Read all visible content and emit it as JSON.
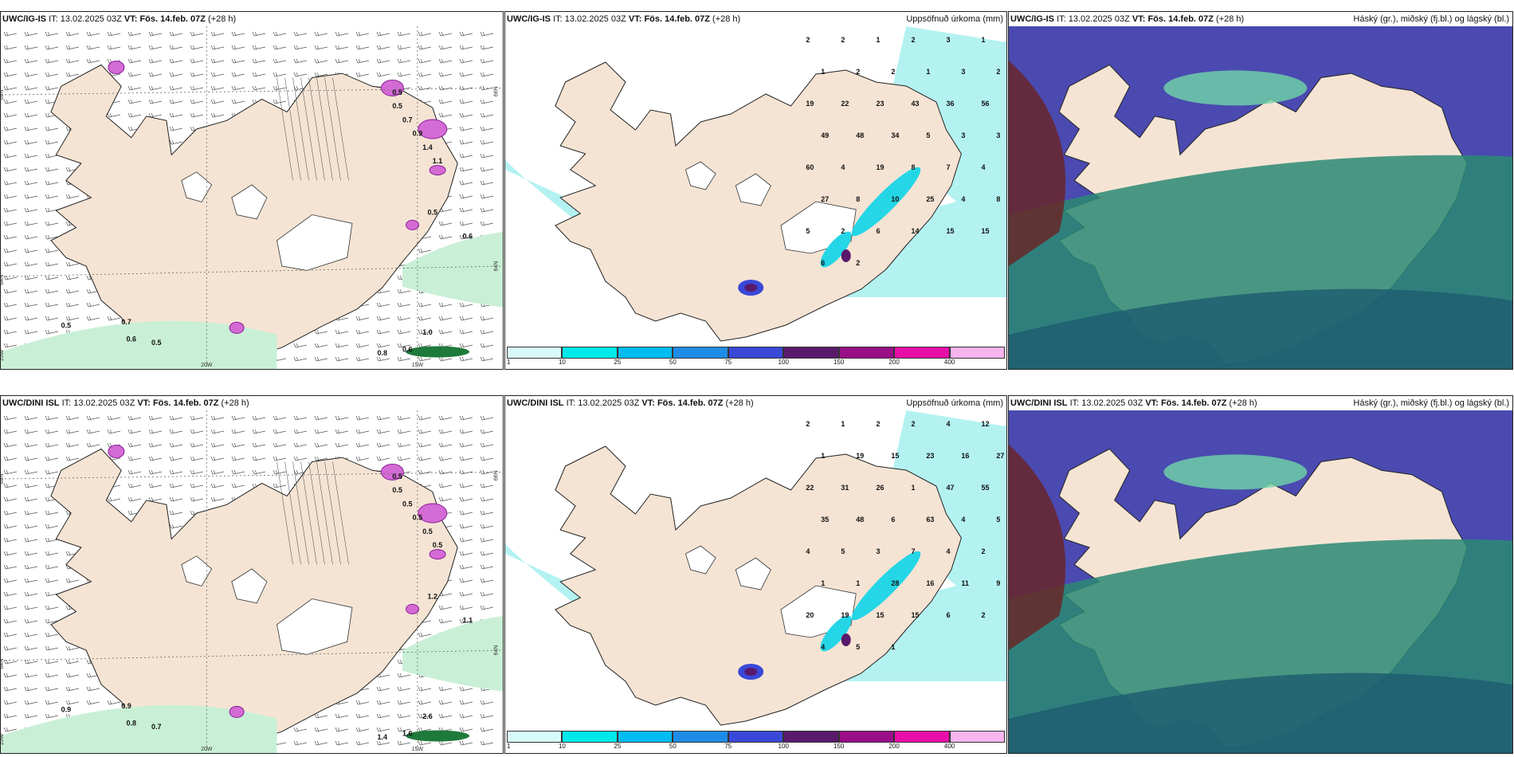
{
  "rows": [
    {
      "panels": [
        {
          "model": "UWC/IG-IS",
          "it_label": "IT:",
          "it": "13.02.2025 03Z",
          "vt_label": "VT:",
          "vt": "Fös. 14.feb. 07Z",
          "lead": "(+28 h)",
          "right_title": ""
        },
        {
          "model": "UWC/IG-IS",
          "it_label": "IT:",
          "it": "13.02.2025 03Z",
          "vt_label": "VT:",
          "vt": "Fös. 14.feb. 07Z",
          "lead": "(+28 h)",
          "right_title": "Uppsöfnuð úrkoma (mm)"
        },
        {
          "model": "UWC/IG-IS",
          "it_label": "IT:",
          "it": "13.02.2025 03Z",
          "vt_label": "VT:",
          "vt": "Fös. 14.feb. 07Z",
          "lead": "(+28 h)",
          "right_title": "Háský (gr.), miðský (fj.bl.) og lágský (bl.)"
        }
      ],
      "wind_values": [
        "0.5",
        "0.5",
        "0.7",
        "0.9",
        "1.4",
        "1.1",
        "0.5",
        "0.6",
        "0.5",
        "0.7",
        "0.6",
        "0.5",
        "0.8",
        "0.6",
        "1.0"
      ],
      "precip_values": [
        "2",
        "2",
        "1",
        "2",
        "3",
        "1",
        "1",
        "2",
        "2",
        "1",
        "3",
        "2",
        "19",
        "22",
        "23",
        "43",
        "36",
        "56",
        "49",
        "48",
        "34",
        "5",
        "3",
        "3",
        "60",
        "4",
        "19",
        "8",
        "7",
        "4",
        "27",
        "8",
        "10",
        "25",
        "4",
        "8",
        "5",
        "2",
        "6",
        "14",
        "15",
        "15",
        "6",
        "2"
      ],
      "axis_labels": [
        "66N",
        "64N",
        "25W",
        "20W",
        "15W",
        "66N",
        "64N"
      ]
    },
    {
      "panels": [
        {
          "model": "UWC/DINI ISL",
          "it_label": "IT:",
          "it": "13.02.2025 03Z",
          "vt_label": "VT:",
          "vt": "Fös. 14.feb. 07Z",
          "lead": "(+28 h)",
          "right_title": ""
        },
        {
          "model": "UWC/DINI ISL",
          "it_label": "IT:",
          "it": "13.02.2025 03Z",
          "vt_label": "VT:",
          "vt": "Fös. 14.feb. 07Z",
          "lead": "(+28 h)",
          "right_title": "Uppsöfnuð úrkoma (mm)"
        },
        {
          "model": "UWC/DINI ISL",
          "it_label": "IT:",
          "it": "13.02.2025 03Z",
          "vt_label": "VT:",
          "vt": "Fös. 14.feb. 07Z",
          "lead": "(+28 h)",
          "right_title": "Háský (gr.), miðský (fj.bl.) og lágský (bl.)"
        }
      ],
      "wind_values": [
        "0.5",
        "0.5",
        "0.5",
        "0.5",
        "0.5",
        "0.5",
        "1.2",
        "1.1",
        "0.9",
        "0.9",
        "0.8",
        "0.7",
        "1.4",
        "1.6",
        "2.6"
      ],
      "precip_values": [
        "2",
        "1",
        "2",
        "2",
        "4",
        "12",
        "1",
        "19",
        "15",
        "23",
        "16",
        "27",
        "22",
        "31",
        "26",
        "1",
        "47",
        "55",
        "35",
        "48",
        "6",
        "63",
        "4",
        "5",
        "4",
        "5",
        "3",
        "7",
        "4",
        "2",
        "1",
        "1",
        "28",
        "16",
        "11",
        "9",
        "20",
        "19",
        "15",
        "15",
        "6",
        "2",
        "4",
        "5",
        "1"
      ],
      "axis_labels": [
        "66N",
        "64N",
        "25W",
        "20W",
        "15W",
        "66N",
        "64N"
      ]
    }
  ],
  "colorbar": {
    "ticks": [
      "1",
      "10",
      "25",
      "50",
      "75",
      "100",
      "150",
      "200",
      "400"
    ],
    "colors": [
      "#d8fafa",
      "#00e9e9",
      "#00bcf0",
      "#1e8ce6",
      "#3a48d8",
      "#5a1a6c",
      "#9a0e88",
      "#e80ea8",
      "#f7b4ee"
    ]
  },
  "colors": {
    "land": "#f5e4d4",
    "precip_light": "#b4f2f2",
    "precip_mid": "#25d6e6",
    "snow": "#c9f0d6",
    "cloud_high": "#4a4ab0",
    "cloud_mid": "#2a8a74",
    "cloud_low": "#6a2222",
    "wind_shade": "#5cbf76",
    "heavy": "#8a1e9a"
  }
}
